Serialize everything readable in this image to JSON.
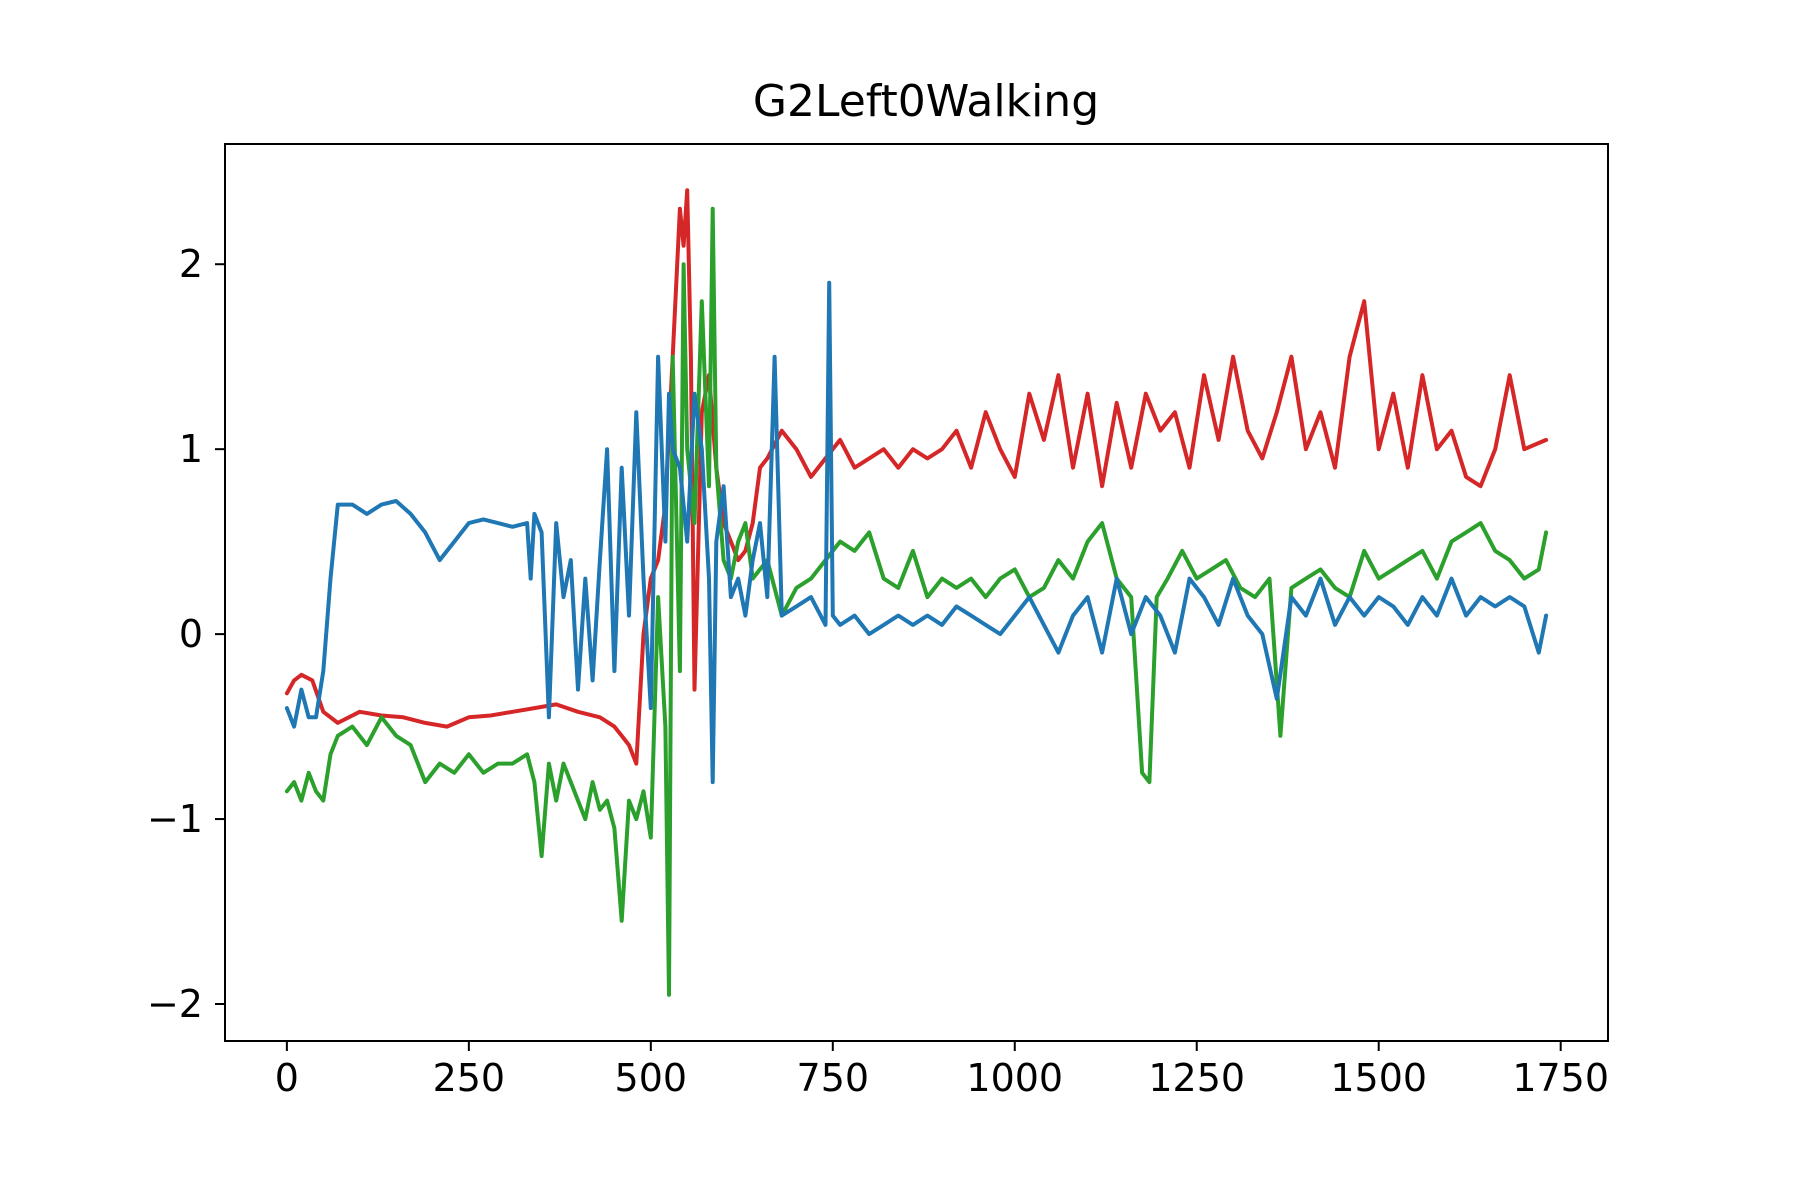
{
  "chart_data": {
    "type": "line",
    "title": "G2Left0Walking",
    "xlabel": "",
    "ylabel": "",
    "xlim": [
      -85,
      1815
    ],
    "ylim": [
      -2.2,
      2.65
    ],
    "xticks": [
      {
        "value": 0,
        "label": "0"
      },
      {
        "value": 250,
        "label": "250"
      },
      {
        "value": 500,
        "label": "500"
      },
      {
        "value": 750,
        "label": "750"
      },
      {
        "value": 1000,
        "label": "1000"
      },
      {
        "value": 1250,
        "label": "1250"
      },
      {
        "value": 1500,
        "label": "1500"
      },
      {
        "value": 1750,
        "label": "1750"
      }
    ],
    "yticks": [
      {
        "value": -2,
        "label": "−2"
      },
      {
        "value": -1,
        "label": "−1"
      },
      {
        "value": 0,
        "label": "0"
      },
      {
        "value": 1,
        "label": "1"
      },
      {
        "value": 2,
        "label": "2"
      }
    ],
    "grid": false,
    "legend": "none",
    "series": [
      {
        "color": "#d62728",
        "x": [
          0,
          10,
          20,
          35,
          50,
          70,
          100,
          130,
          160,
          190,
          220,
          250,
          280,
          310,
          340,
          370,
          400,
          430,
          450,
          460,
          470,
          480,
          490,
          500,
          510,
          520,
          530,
          540,
          545,
          550,
          555,
          560,
          570,
          580,
          590,
          600,
          610,
          620,
          630,
          640,
          650,
          660,
          680,
          700,
          720,
          740,
          760,
          780,
          800,
          820,
          840,
          860,
          880,
          900,
          920,
          940,
          960,
          980,
          1000,
          1020,
          1040,
          1060,
          1080,
          1100,
          1120,
          1140,
          1160,
          1180,
          1200,
          1220,
          1240,
          1260,
          1280,
          1300,
          1320,
          1340,
          1360,
          1380,
          1400,
          1420,
          1440,
          1460,
          1480,
          1500,
          1520,
          1540,
          1560,
          1580,
          1600,
          1620,
          1640,
          1660,
          1680,
          1700,
          1730
        ],
        "y": [
          -0.32,
          -0.25,
          -0.22,
          -0.25,
          -0.42,
          -0.48,
          -0.42,
          -0.44,
          -0.45,
          -0.48,
          -0.5,
          -0.45,
          -0.44,
          -0.42,
          -0.4,
          -0.38,
          -0.42,
          -0.45,
          -0.5,
          -0.55,
          -0.6,
          -0.7,
          0.0,
          0.3,
          0.4,
          0.7,
          1.5,
          2.3,
          2.1,
          2.4,
          1.5,
          -0.3,
          1.2,
          1.4,
          0.9,
          0.6,
          0.5,
          0.4,
          0.45,
          0.6,
          0.9,
          0.95,
          1.1,
          1.0,
          0.85,
          0.95,
          1.05,
          0.9,
          0.95,
          1.0,
          0.9,
          1.0,
          0.95,
          1.0,
          1.1,
          0.9,
          1.2,
          1.0,
          0.85,
          1.3,
          1.05,
          1.4,
          0.9,
          1.3,
          0.8,
          1.25,
          0.9,
          1.3,
          1.1,
          1.2,
          0.9,
          1.4,
          1.05,
          1.5,
          1.1,
          0.95,
          1.2,
          1.5,
          1.0,
          1.2,
          0.9,
          1.5,
          1.8,
          1.0,
          1.3,
          0.9,
          1.4,
          1.0,
          1.1,
          0.85,
          0.8,
          1.0,
          1.4,
          1.0,
          1.05
        ]
      },
      {
        "color": "#2ca02c",
        "x": [
          0,
          10,
          20,
          30,
          40,
          50,
          60,
          70,
          90,
          110,
          130,
          150,
          170,
          190,
          210,
          230,
          250,
          270,
          290,
          310,
          330,
          340,
          350,
          360,
          370,
          380,
          390,
          400,
          410,
          420,
          430,
          440,
          450,
          460,
          470,
          480,
          490,
          500,
          510,
          520,
          525,
          530,
          540,
          545,
          550,
          560,
          570,
          580,
          585,
          590,
          600,
          610,
          620,
          630,
          640,
          660,
          680,
          700,
          720,
          740,
          760,
          780,
          800,
          820,
          840,
          860,
          880,
          900,
          920,
          940,
          960,
          980,
          1000,
          1020,
          1040,
          1060,
          1080,
          1100,
          1120,
          1140,
          1160,
          1175,
          1185,
          1195,
          1210,
          1230,
          1250,
          1270,
          1290,
          1310,
          1330,
          1350,
          1365,
          1380,
          1400,
          1420,
          1440,
          1460,
          1480,
          1500,
          1520,
          1540,
          1560,
          1580,
          1600,
          1620,
          1640,
          1660,
          1680,
          1700,
          1720,
          1730
        ],
        "y": [
          -0.85,
          -0.8,
          -0.9,
          -0.75,
          -0.85,
          -0.9,
          -0.65,
          -0.55,
          -0.5,
          -0.6,
          -0.45,
          -0.55,
          -0.6,
          -0.8,
          -0.7,
          -0.75,
          -0.65,
          -0.75,
          -0.7,
          -0.7,
          -0.65,
          -0.8,
          -1.2,
          -0.7,
          -0.9,
          -0.7,
          -0.8,
          -0.9,
          -1.0,
          -0.8,
          -0.95,
          -0.9,
          -1.05,
          -1.55,
          -0.9,
          -1.0,
          -0.85,
          -1.1,
          0.2,
          -0.5,
          -1.95,
          1.5,
          -0.2,
          2.0,
          1.0,
          0.6,
          1.8,
          0.8,
          2.3,
          0.9,
          0.4,
          0.3,
          0.5,
          0.6,
          0.3,
          0.4,
          0.1,
          0.25,
          0.3,
          0.4,
          0.5,
          0.45,
          0.55,
          0.3,
          0.25,
          0.45,
          0.2,
          0.3,
          0.25,
          0.3,
          0.2,
          0.3,
          0.35,
          0.2,
          0.25,
          0.4,
          0.3,
          0.5,
          0.6,
          0.3,
          0.2,
          -0.75,
          -0.8,
          0.2,
          0.3,
          0.45,
          0.3,
          0.35,
          0.4,
          0.25,
          0.2,
          0.3,
          -0.55,
          0.25,
          0.3,
          0.35,
          0.25,
          0.2,
          0.45,
          0.3,
          0.35,
          0.4,
          0.45,
          0.3,
          0.5,
          0.55,
          0.6,
          0.45,
          0.4,
          0.3,
          0.35,
          0.55
        ]
      },
      {
        "color": "#1f77b4",
        "x": [
          0,
          10,
          20,
          30,
          40,
          50,
          60,
          70,
          90,
          110,
          130,
          150,
          170,
          190,
          210,
          230,
          250,
          270,
          290,
          310,
          330,
          335,
          340,
          350,
          360,
          370,
          380,
          390,
          400,
          410,
          420,
          430,
          440,
          450,
          460,
          470,
          480,
          490,
          500,
          510,
          520,
          525,
          530,
          540,
          550,
          560,
          570,
          580,
          585,
          590,
          600,
          610,
          620,
          630,
          640,
          650,
          660,
          670,
          680,
          700,
          720,
          740,
          745,
          750,
          760,
          780,
          800,
          820,
          840,
          860,
          880,
          900,
          920,
          940,
          960,
          980,
          1000,
          1020,
          1040,
          1060,
          1080,
          1100,
          1120,
          1140,
          1160,
          1180,
          1200,
          1220,
          1240,
          1260,
          1280,
          1300,
          1320,
          1340,
          1360,
          1380,
          1400,
          1420,
          1440,
          1460,
          1480,
          1500,
          1520,
          1540,
          1560,
          1580,
          1600,
          1620,
          1640,
          1660,
          1680,
          1700,
          1720,
          1730
        ],
        "y": [
          -0.4,
          -0.5,
          -0.3,
          -0.45,
          -0.45,
          -0.2,
          0.3,
          0.7,
          0.7,
          0.65,
          0.7,
          0.72,
          0.65,
          0.55,
          0.4,
          0.5,
          0.6,
          0.62,
          0.6,
          0.58,
          0.6,
          0.3,
          0.65,
          0.55,
          -0.45,
          0.6,
          0.2,
          0.4,
          -0.3,
          0.3,
          -0.25,
          0.4,
          1.0,
          -0.2,
          0.9,
          0.1,
          1.2,
          0.3,
          -0.4,
          1.5,
          0.5,
          1.3,
          1.0,
          0.9,
          0.5,
          1.3,
          1.0,
          0.3,
          -0.8,
          0.5,
          0.8,
          0.2,
          0.3,
          0.1,
          0.4,
          0.6,
          0.2,
          1.5,
          0.1,
          0.15,
          0.2,
          0.05,
          1.9,
          0.1,
          0.05,
          0.1,
          0.0,
          0.05,
          0.1,
          0.05,
          0.1,
          0.05,
          0.15,
          0.1,
          0.05,
          0.0,
          0.1,
          0.2,
          0.05,
          -0.1,
          0.1,
          0.2,
          -0.1,
          0.3,
          0.0,
          0.2,
          0.1,
          -0.1,
          0.3,
          0.2,
          0.05,
          0.3,
          0.1,
          0.0,
          -0.35,
          0.2,
          0.1,
          0.3,
          0.05,
          0.2,
          0.1,
          0.2,
          0.15,
          0.05,
          0.2,
          0.1,
          0.3,
          0.1,
          0.2,
          0.15,
          0.2,
          0.15,
          -0.1,
          0.1
        ]
      }
    ]
  }
}
